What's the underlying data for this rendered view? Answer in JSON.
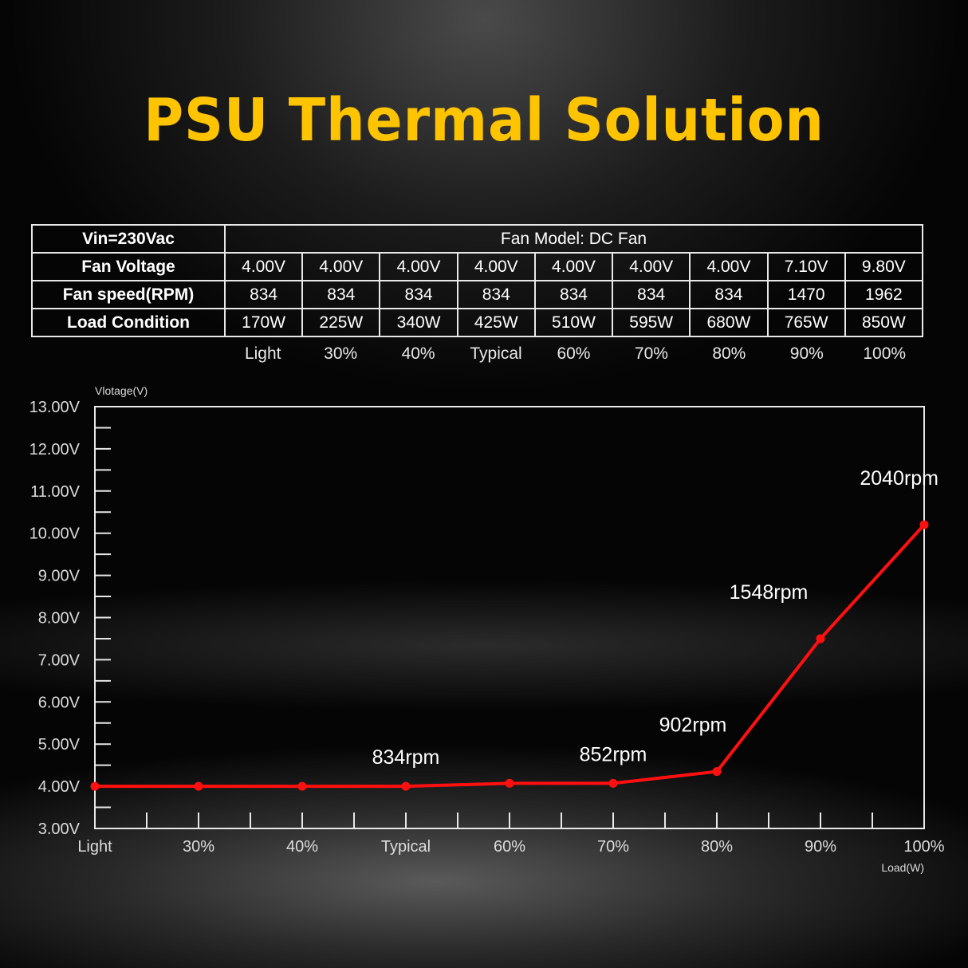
{
  "title": "PSU Thermal Solution",
  "table": {
    "header_label": "Vin=230Vac",
    "header_value": "Fan Model: DC Fan",
    "rows": [
      {
        "label": "Fan Voltage",
        "values": [
          "4.00V",
          "4.00V",
          "4.00V",
          "4.00V",
          "4.00V",
          "4.00V",
          "4.00V",
          "7.10V",
          "9.80V"
        ]
      },
      {
        "label": "Fan speed(RPM)",
        "values": [
          "834",
          "834",
          "834",
          "834",
          "834",
          "834",
          "834",
          "1470",
          "1962"
        ]
      },
      {
        "label": "Load Condition",
        "values": [
          "170W",
          "225W",
          "340W",
          "425W",
          "510W",
          "595W",
          "680W",
          "765W",
          "850W"
        ]
      }
    ],
    "conditions": [
      "Light",
      "30%",
      "40%",
      "Typical",
      "60%",
      "70%",
      "80%",
      "90%",
      "100%"
    ]
  },
  "chart_data": {
    "type": "line",
    "ylabel": "Vlotage(V)",
    "xlabel": "Load(W)",
    "ylim": [
      3.0,
      13.0
    ],
    "yticks": [
      "3.00V",
      "4.00V",
      "5.00V",
      "6.00V",
      "7.00V",
      "8.00V",
      "9.00V",
      "10.00V",
      "11.00V",
      "12.00V",
      "13.00V"
    ],
    "categories": [
      "Light",
      "30%",
      "40%",
      "Typical",
      "60%",
      "70%",
      "80%",
      "90%",
      "100%"
    ],
    "values": [
      4.0,
      4.0,
      4.0,
      4.0,
      4.07,
      4.07,
      4.35,
      7.5,
      10.2
    ],
    "annotations": [
      {
        "index": 3,
        "text": "834rpm"
      },
      {
        "index": 5,
        "text": "852rpm"
      },
      {
        "index": 6,
        "text": "902rpm"
      },
      {
        "index": 7,
        "text": "1548rpm"
      },
      {
        "index": 8,
        "text": "2040rpm"
      }
    ],
    "grid": false,
    "line_color": "#ff1010",
    "frame_color": "#e8e8e8"
  }
}
